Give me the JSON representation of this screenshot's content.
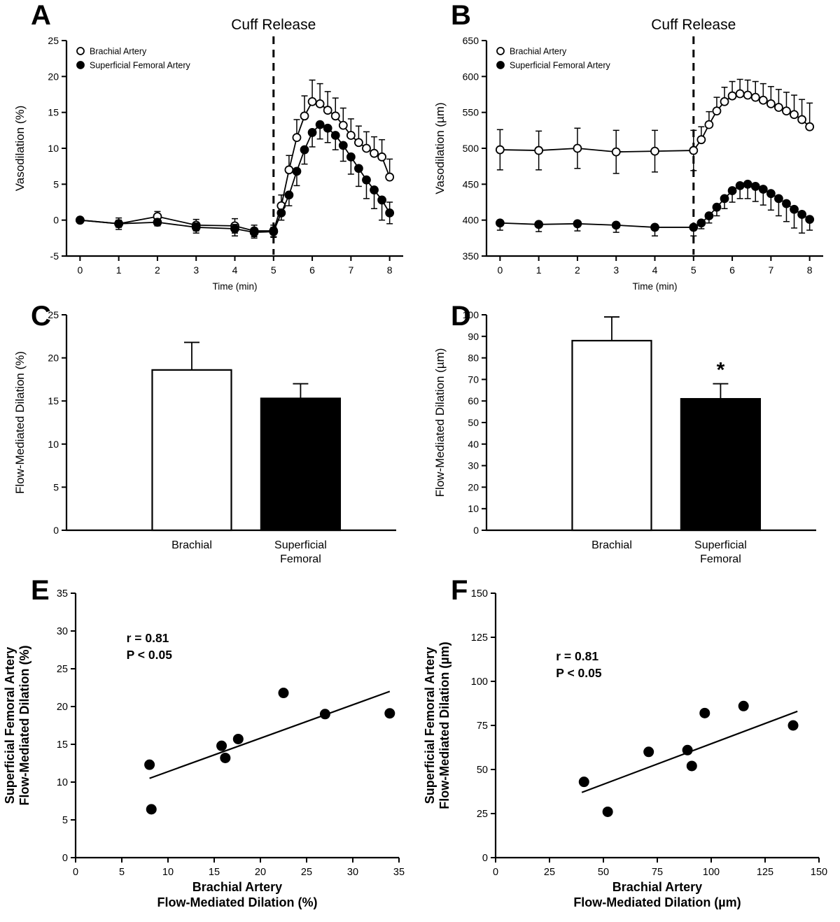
{
  "figure": {
    "background": "#ffffff",
    "ink_color": "#000000",
    "panel_letters": [
      "A",
      "B",
      "C",
      "D",
      "E",
      "F"
    ]
  },
  "chart_data": [
    {
      "panel": "A",
      "type": "line",
      "xlabel": "Time (min)",
      "ylabel": [
        "Vasodilation (%)"
      ],
      "xlim": [
        -0.35,
        8.35
      ],
      "ylim": [
        -5,
        25
      ],
      "xticks": [
        0,
        1,
        2,
        3,
        4,
        5,
        6,
        7,
        8
      ],
      "yticks": [
        -5,
        0,
        5,
        10,
        15,
        20,
        25
      ],
      "vline": {
        "x": 5,
        "label": "Cuff Release"
      },
      "legend": true,
      "series": [
        {
          "name": "Brachial Artery",
          "marker": "open",
          "x": [
            0,
            1,
            2,
            3,
            4,
            4.5,
            5,
            5.2,
            5.4,
            5.6,
            5.8,
            6,
            6.2,
            6.4,
            6.6,
            6.8,
            7,
            7.2,
            7.4,
            7.6,
            7.8,
            8
          ],
          "y": [
            0,
            -0.5,
            0.5,
            -0.7,
            -0.8,
            -1.5,
            -1.5,
            2,
            7,
            11.5,
            14.5,
            16.5,
            16.2,
            15.3,
            14.5,
            13.2,
            11.8,
            10.8,
            10,
            9.3,
            8.8,
            6
          ],
          "err_up": [
            0.3,
            0.8,
            0.7,
            0.8,
            1,
            0.8,
            0.8,
            1.5,
            2,
            2.5,
            2.8,
            3,
            2.8,
            2.6,
            2.5,
            2.4,
            2.3,
            2.3,
            2.3,
            2.3,
            2.4,
            2.5
          ],
          "err_down": [
            0.3,
            0.8,
            0.7,
            0.8,
            1,
            0.8,
            0.8,
            0,
            0,
            0,
            0,
            0,
            0,
            0,
            0,
            0,
            0,
            0,
            0,
            0,
            0,
            0
          ]
        },
        {
          "name": "Superficial Femoral Artery",
          "marker": "filled",
          "x": [
            0,
            1,
            2,
            3,
            4,
            4.5,
            5,
            5.2,
            5.4,
            5.6,
            5.8,
            6,
            6.2,
            6.4,
            6.6,
            6.8,
            7,
            7.2,
            7.4,
            7.6,
            7.8,
            8
          ],
          "y": [
            0,
            -0.5,
            -0.3,
            -1,
            -1.2,
            -1.7,
            -1.6,
            1,
            3.5,
            6.8,
            9.8,
            12.2,
            13.3,
            12.8,
            11.8,
            10.4,
            8.8,
            7.2,
            5.6,
            4.2,
            2.8,
            1
          ],
          "err_up": [
            0.3,
            0.5,
            0.5,
            0.6,
            0.6,
            0.6,
            0.6,
            0,
            0,
            0,
            0,
            0,
            0,
            0,
            0,
            0,
            0,
            0,
            0,
            0,
            0,
            1.5
          ],
          "err_down": [
            0.3,
            0.5,
            0.5,
            0.8,
            1,
            0.8,
            0.8,
            1,
            1.5,
            2,
            2,
            2,
            2,
            2,
            2,
            2.2,
            2.4,
            2.5,
            2.6,
            2.6,
            2.8,
            1.5
          ]
        }
      ]
    },
    {
      "panel": "B",
      "type": "line",
      "xlabel": "Time (min)",
      "ylabel": [
        "Vasodilation (µm)"
      ],
      "xlim": [
        -0.35,
        8.35
      ],
      "ylim": [
        350,
        650
      ],
      "xticks": [
        0,
        1,
        2,
        3,
        4,
        5,
        6,
        7,
        8
      ],
      "yticks": [
        350,
        400,
        450,
        500,
        550,
        600,
        650
      ],
      "vline": {
        "x": 5,
        "label": "Cuff Release"
      },
      "legend": true,
      "series": [
        {
          "name": "Brachial Artery",
          "marker": "open",
          "x": [
            0,
            1,
            2,
            3,
            4,
            5,
            5.2,
            5.4,
            5.6,
            5.8,
            6,
            6.2,
            6.4,
            6.6,
            6.8,
            7,
            7.2,
            7.4,
            7.6,
            7.8,
            8
          ],
          "y": [
            498,
            497,
            500,
            495,
            496,
            497,
            512,
            533,
            552,
            565,
            573,
            576,
            574,
            571,
            567,
            562,
            557,
            552,
            547,
            540,
            530
          ],
          "err_up": [
            28,
            27,
            28,
            30,
            29,
            28,
            18,
            18,
            19,
            20,
            20,
            20,
            21,
            22,
            23,
            24,
            25,
            26,
            27,
            28,
            33
          ],
          "err_down": [
            28,
            27,
            28,
            30,
            29,
            28,
            0,
            0,
            0,
            0,
            0,
            0,
            0,
            0,
            0,
            0,
            0,
            0,
            0,
            0,
            0
          ]
        },
        {
          "name": "Superficial Femoral Artery",
          "marker": "filled",
          "x": [
            0,
            1,
            2,
            3,
            4,
            5,
            5.2,
            5.4,
            5.6,
            5.8,
            6,
            6.2,
            6.4,
            6.6,
            6.8,
            7,
            7.2,
            7.4,
            7.6,
            7.8,
            8
          ],
          "y": [
            396,
            394,
            395,
            393,
            390,
            390,
            396,
            406,
            418,
            430,
            441,
            448,
            450,
            447,
            443,
            437,
            430,
            423,
            415,
            408,
            401
          ],
          "err_up": [
            0,
            0,
            0,
            0,
            0,
            0,
            0,
            0,
            0,
            0,
            0,
            0,
            0,
            0,
            0,
            0,
            0,
            0,
            0,
            0,
            0
          ],
          "err_down": [
            10,
            10,
            10,
            10,
            12,
            12,
            8,
            10,
            12,
            14,
            16,
            18,
            20,
            21,
            22,
            23,
            24,
            25,
            26,
            26,
            15
          ]
        }
      ]
    },
    {
      "panel": "C",
      "type": "bar",
      "ylabel": [
        "Flow-Mediated Dilation (%)"
      ],
      "ylim": [
        0,
        25
      ],
      "yticks": [
        0,
        5,
        10,
        15,
        20,
        25
      ],
      "categories": [
        [
          "Brachial"
        ],
        [
          "Superficial",
          "Femoral"
        ]
      ],
      "values": [
        18.6,
        15.3
      ],
      "errors": [
        3.2,
        1.7
      ],
      "fills": [
        "#ffffff",
        "#000000"
      ],
      "centers": [
        0.38,
        0.71
      ],
      "bar_width": 0.24
    },
    {
      "panel": "D",
      "type": "bar",
      "ylabel": [
        "Flow-Mediated Dilation (µm)"
      ],
      "ylim": [
        0,
        100
      ],
      "yticks": [
        0,
        10,
        20,
        30,
        40,
        50,
        60,
        70,
        80,
        90,
        100
      ],
      "categories": [
        [
          "Brachial"
        ],
        [
          "Superficial",
          "Femoral"
        ]
      ],
      "values": [
        88,
        61
      ],
      "errors": [
        11,
        7
      ],
      "fills": [
        "#ffffff",
        "#000000"
      ],
      "centers": [
        0.38,
        0.71
      ],
      "bar_width": 0.24,
      "star": {
        "index": 1,
        "symbol": "*"
      }
    },
    {
      "panel": "E",
      "type": "scatter",
      "xlabel": [
        "Brachial Artery",
        "Flow-Mediated Dilation (%)"
      ],
      "ylabel": [
        "Superficial Femoral Artery",
        "Flow-Mediated Dilation (%)"
      ],
      "xlim": [
        0,
        35
      ],
      "ylim": [
        0,
        35
      ],
      "xticks": [
        0,
        5,
        10,
        15,
        20,
        25,
        30,
        35
      ],
      "yticks": [
        0,
        5,
        10,
        15,
        20,
        25,
        30,
        35
      ],
      "points": [
        [
          8,
          12.3
        ],
        [
          8.2,
          6.4
        ],
        [
          15.8,
          14.8
        ],
        [
          16.2,
          13.2
        ],
        [
          17.6,
          15.7
        ],
        [
          22.5,
          21.8
        ],
        [
          27,
          19
        ],
        [
          34,
          19.1
        ]
      ],
      "fit_line": {
        "x1": 8,
        "y1": 10.5,
        "x2": 34,
        "y2": 22
      },
      "annotation": {
        "lines": [
          "r = 0.81",
          "P < 0.05"
        ],
        "x": 5.5,
        "y": 28.5
      }
    },
    {
      "panel": "F",
      "type": "scatter",
      "xlabel": [
        "Brachial Artery",
        "Flow-Mediated Dilation (µm)"
      ],
      "ylabel": [
        "Superficial Femoral Artery",
        "Flow-Mediated Dilation (µm)"
      ],
      "xlim": [
        0,
        150
      ],
      "ylim": [
        0,
        150
      ],
      "xticks": [
        0,
        25,
        50,
        75,
        100,
        125,
        150
      ],
      "yticks": [
        0,
        25,
        50,
        75,
        100,
        125,
        150
      ],
      "points": [
        [
          41,
          43
        ],
        [
          52,
          26
        ],
        [
          71,
          60
        ],
        [
          89,
          61
        ],
        [
          91,
          52
        ],
        [
          97,
          82
        ],
        [
          115,
          86
        ],
        [
          138,
          75
        ]
      ],
      "fit_line": {
        "x1": 40,
        "y1": 37,
        "x2": 140,
        "y2": 83
      },
      "annotation": {
        "lines": [
          "r = 0.81",
          "P < 0.05"
        ],
        "x": 28,
        "y": 112
      }
    }
  ]
}
